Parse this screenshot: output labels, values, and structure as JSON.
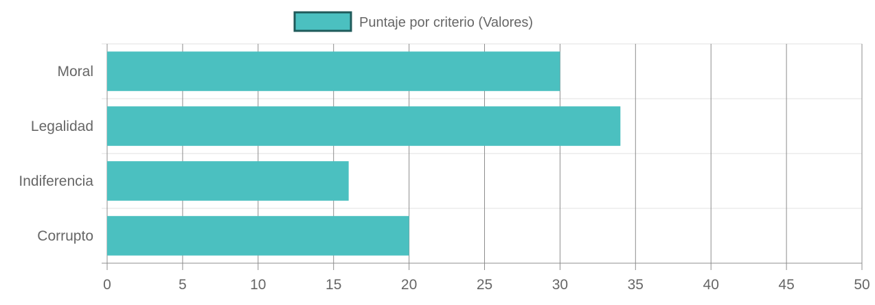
{
  "chart_data": {
    "type": "bar",
    "orientation": "horizontal",
    "categories": [
      "Moral",
      "Legalidad",
      "Indiferencia",
      "Corrupto"
    ],
    "series": [
      {
        "name": "Puntaje por criterio (Valores)",
        "values": [
          30,
          34,
          16,
          20
        ],
        "color": "#4BC0C0",
        "border_color": "#1F5A5A"
      }
    ],
    "xlim": [
      0,
      50
    ],
    "x_ticks": [
      0,
      5,
      10,
      15,
      20,
      25,
      30,
      35,
      40,
      45,
      50
    ],
    "grid": true,
    "legend_position": "top"
  },
  "colors": {
    "bar": "#4BC0C0",
    "legend_border": "#1F5A5A",
    "grid_vertical": "#8c8c8c",
    "grid_horizontal": "#e0e0e0",
    "text": "#666666"
  }
}
